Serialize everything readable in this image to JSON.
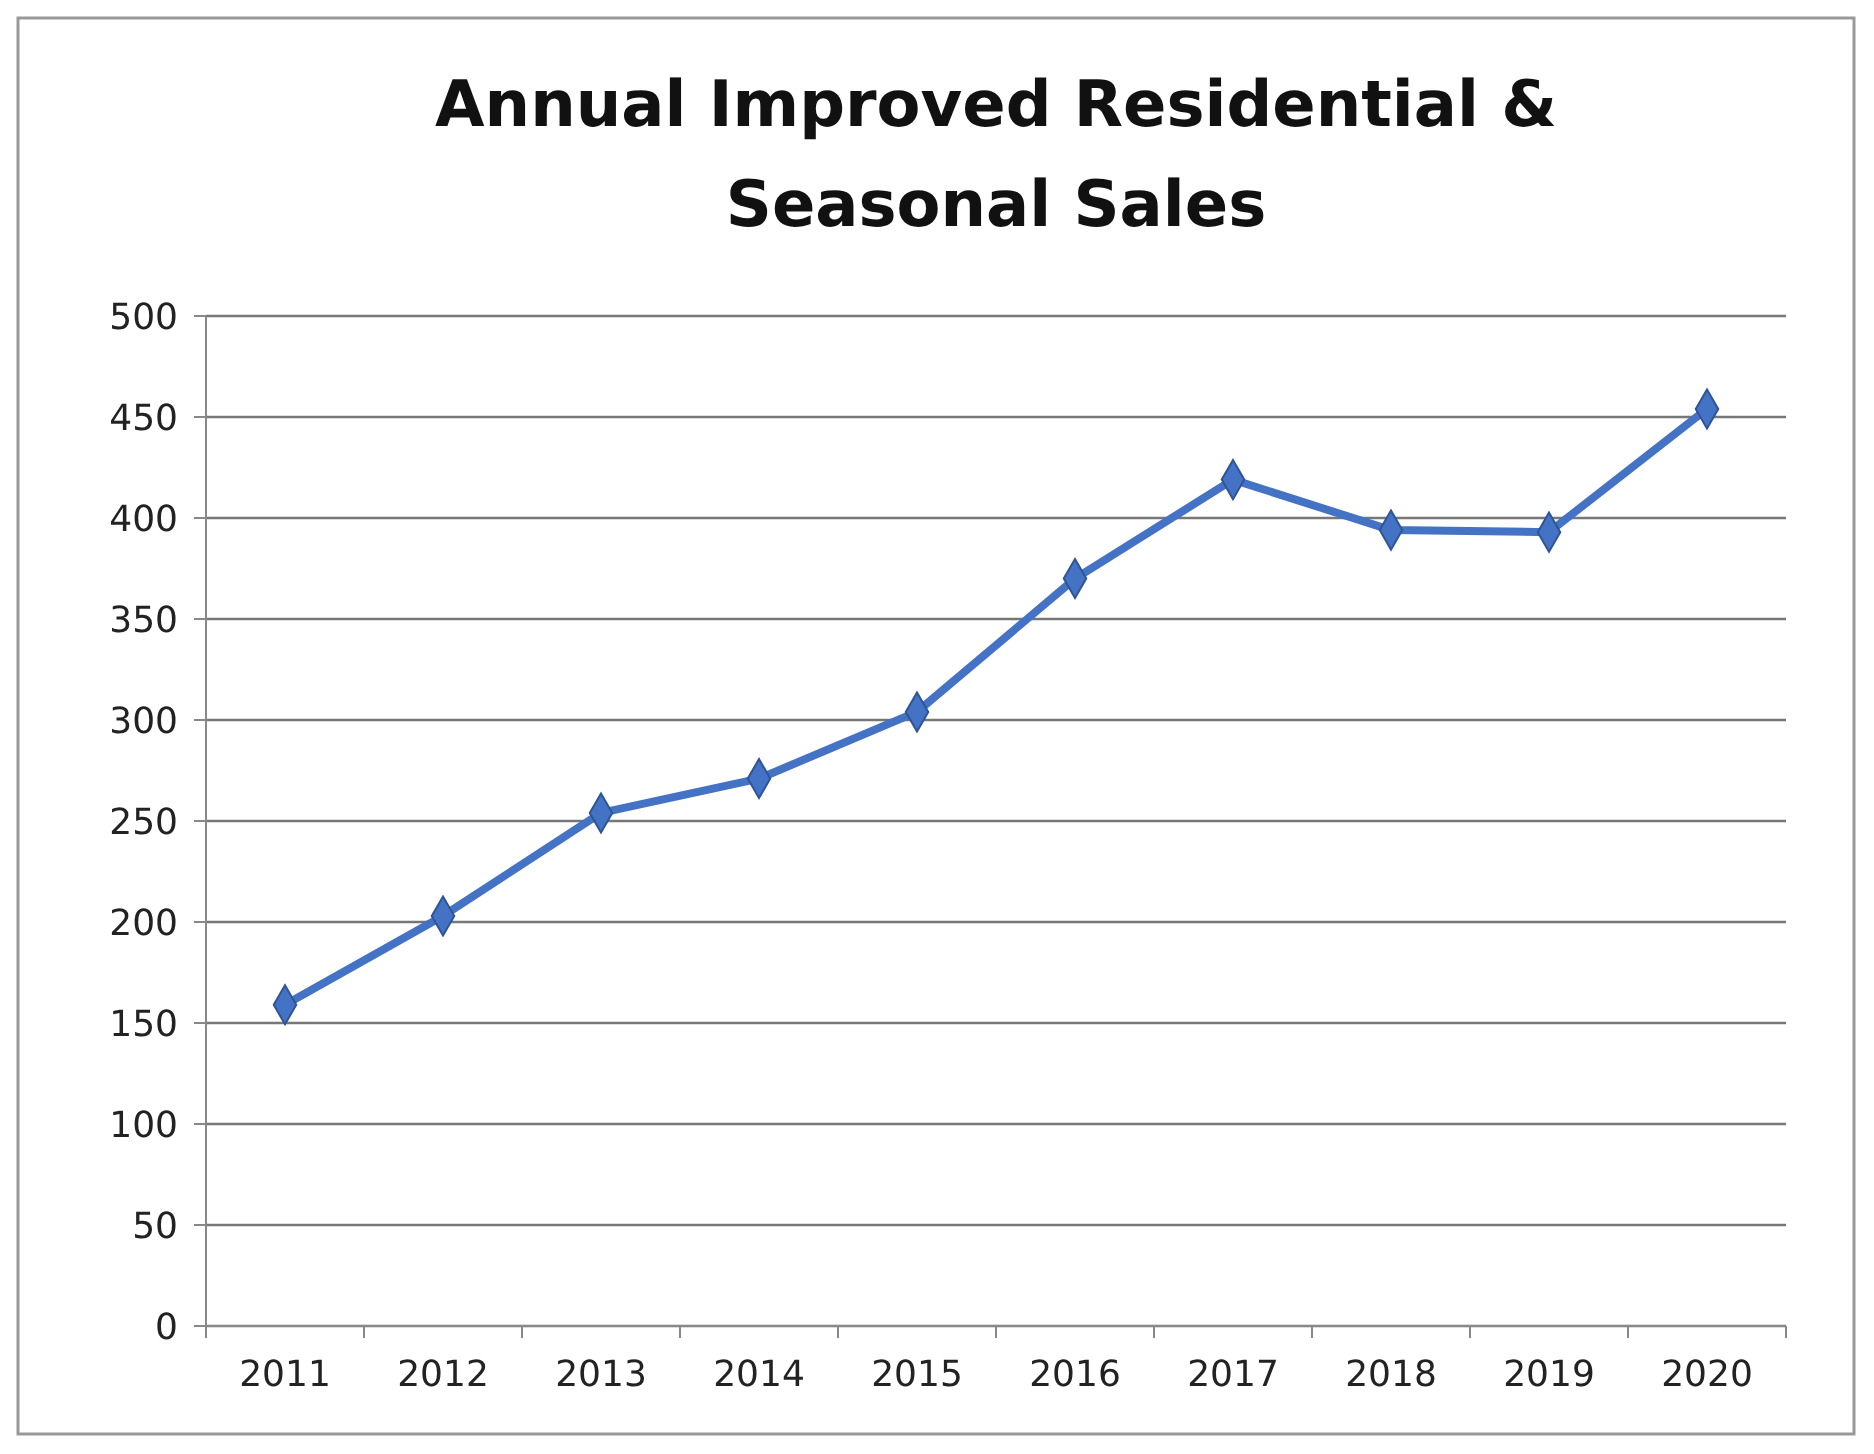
{
  "chart_data": {
    "type": "line",
    "title": "Annual Improved Residential & Seasonal Sales",
    "categories": [
      "2011",
      "2012",
      "2013",
      "2014",
      "2015",
      "2016",
      "2017",
      "2018",
      "2019",
      "2020"
    ],
    "series": [
      {
        "color": "#4472c4",
        "values": [
          159,
          203,
          254,
          271,
          304,
          370,
          419,
          394,
          393,
          454
        ]
      }
    ],
    "ylim": [
      0,
      500
    ],
    "yticks": [
      0,
      50,
      100,
      150,
      200,
      250,
      300,
      350,
      400,
      450,
      500
    ],
    "grid": "y",
    "marker": "diamond",
    "line_style": "solid"
  }
}
